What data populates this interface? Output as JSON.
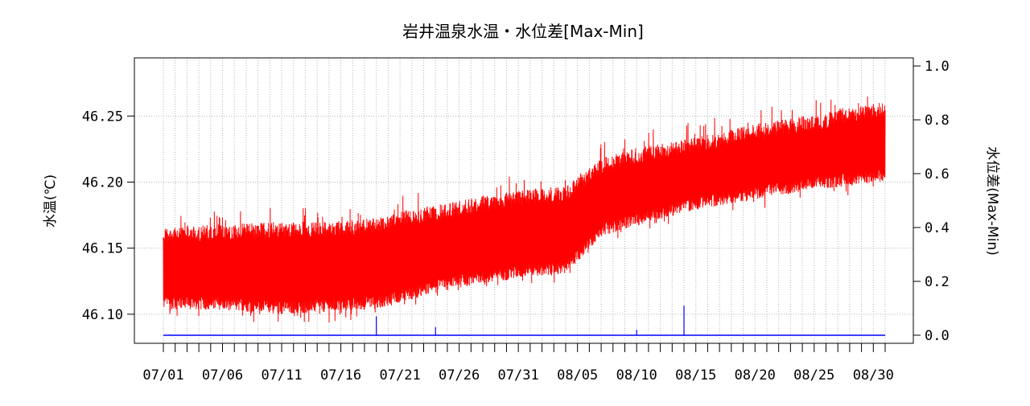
{
  "chart_data": {
    "type": "line",
    "title": "岩井温泉水温・水位差[Max-Min]",
    "ylabel_left": "水温(℃)",
    "ylabel_right": "水位差(Max-Min)",
    "xlabel": "",
    "x_start": "07/01",
    "x_end": "08/31",
    "x_tick_labels": [
      "07/01",
      "07/06",
      "07/11",
      "07/16",
      "07/21",
      "07/26",
      "07/31",
      "08/05",
      "08/10",
      "08/15",
      "08/20",
      "08/25",
      "08/30"
    ],
    "left_axis": {
      "ylim": [
        46.078,
        46.294
      ],
      "ticks": [
        "46.10",
        "46.15",
        "46.20",
        "46.25"
      ]
    },
    "right_axis": {
      "ylim": [
        -0.03,
        1.03
      ],
      "ticks": [
        "0.0",
        "0.2",
        "0.4",
        "0.6",
        "0.8",
        "1.0"
      ]
    },
    "grid": true,
    "series": [
      {
        "axis": "left",
        "color": "#ff0000",
        "envelope": [
          {
            "x": "07/01",
            "min": 46.102,
            "max": 46.17
          },
          {
            "x": "07/06",
            "min": 46.101,
            "max": 46.172
          },
          {
            "x": "07/11",
            "min": 46.098,
            "max": 46.174
          },
          {
            "x": "07/16",
            "min": 46.1,
            "max": 46.175
          },
          {
            "x": "07/19",
            "min": 46.102,
            "max": 46.177
          },
          {
            "x": "07/21",
            "min": 46.107,
            "max": 46.182
          },
          {
            "x": "07/26",
            "min": 46.118,
            "max": 46.19
          },
          {
            "x": "07/31",
            "min": 46.125,
            "max": 46.198
          },
          {
            "x": "08/04",
            "min": 46.128,
            "max": 46.201
          },
          {
            "x": "08/07",
            "min": 46.157,
            "max": 46.222
          },
          {
            "x": "08/10",
            "min": 46.165,
            "max": 46.23
          },
          {
            "x": "08/15",
            "min": 46.177,
            "max": 46.238
          },
          {
            "x": "08/20",
            "min": 46.185,
            "max": 46.248
          },
          {
            "x": "08/25",
            "min": 46.192,
            "max": 46.255
          },
          {
            "x": "08/31",
            "min": 46.198,
            "max": 46.265
          }
        ]
      },
      {
        "axis": "right",
        "color": "#0000ff",
        "baseline": 0.0,
        "spikes": [
          {
            "x": "07/19",
            "y": 0.07
          },
          {
            "x": "07/24",
            "y": 0.03
          },
          {
            "x": "08/14",
            "y": 0.11
          },
          {
            "x": "08/10",
            "y": 0.02
          }
        ]
      }
    ]
  }
}
